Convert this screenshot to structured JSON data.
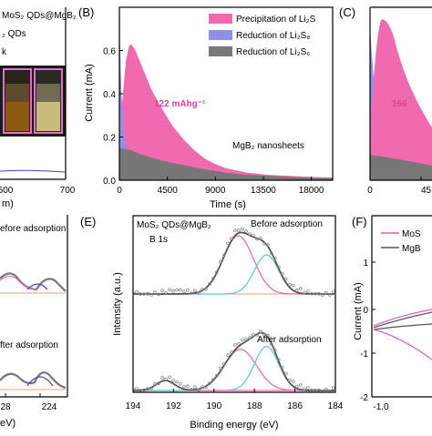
{
  "panels": {
    "a": {
      "legend": [
        "MoS₂ QDs@MgB₂",
        "₂ QDs",
        "k"
      ],
      "x_ticks": [
        "500",
        "700"
      ],
      "x_label": "m)"
    },
    "b": {
      "label": "(B)",
      "y_label": "Current (mA)",
      "x_label": "Time (s)",
      "x_ticks": [
        "0",
        "4500",
        "9000",
        "13500",
        "18000"
      ],
      "y_ticks": [
        "0.0",
        "0.2",
        "0.4",
        "0.6"
      ],
      "legend": [
        {
          "text": "Precipitation of Li₂S",
          "color": "#f06ab0"
        },
        {
          "text": "Reduction of Li₂S₈",
          "color": "#8f8fe8"
        },
        {
          "text": "Reduction of Li₂S₆",
          "color": "#777777"
        }
      ],
      "capacity_label": "122 mAhg⁻¹",
      "material_label": "MgB₂ nanosheets"
    },
    "c": {
      "label": "(C)",
      "capacity_label": "166",
      "x_ticks": [
        "0",
        "45"
      ]
    },
    "d": {
      "before_label": "efore adsorption",
      "after_label": "fter adsorption",
      "x_ticks": [
        "28",
        "224"
      ],
      "x_label": "eV)"
    },
    "e": {
      "label": "(E)",
      "title_line1": "MoS₂ QDs@MgB₂",
      "title_line2": "B 1s",
      "before_label": "Before adsorption",
      "after_label": "After adsorption",
      "y_label": "Intensity (a.u.)",
      "x_label": "Binding energy (eV)",
      "x_ticks": [
        "194",
        "192",
        "190",
        "188",
        "186",
        "184"
      ]
    },
    "f": {
      "label": "(F)",
      "y_label": "Current (mA)",
      "y_ticks": [
        "1",
        "0",
        "-1",
        "-2"
      ],
      "x_ticks": [
        "-1.0"
      ],
      "legend": [
        "MoS",
        "MgB"
      ]
    }
  },
  "chart_data": [
    {
      "type": "area",
      "panel": "B",
      "xlabel": "Time (s)",
      "ylabel": "Current (mA)",
      "xlim": [
        0,
        20000
      ],
      "ylim": [
        0,
        0.8
      ],
      "series": [
        {
          "name": "Precipitation of Li₂S",
          "color": "#f06ab0",
          "x": [
            0,
            300,
            600,
            900,
            1100,
            1500,
            2000,
            2500,
            3000,
            4000,
            5000,
            6000,
            7000,
            8000,
            9000,
            10000,
            12000,
            14000,
            16000,
            18000,
            20000
          ],
          "y": [
            0.2,
            0.38,
            0.55,
            0.62,
            0.63,
            0.6,
            0.54,
            0.48,
            0.42,
            0.33,
            0.25,
            0.19,
            0.14,
            0.1,
            0.075,
            0.055,
            0.035,
            0.025,
            0.02,
            0.015,
            0.012
          ]
        },
        {
          "name": "Reduction of Li₂S₈",
          "color": "#8f8fe8",
          "x": [
            0,
            100,
            200,
            400,
            600,
            800,
            1000,
            1200,
            1500
          ],
          "y": [
            0.8,
            0.55,
            0.4,
            0.24,
            0.16,
            0.12,
            0.11,
            0.1,
            0.1
          ]
        },
        {
          "name": "Reduction of Li₂S₆",
          "color": "#777777",
          "x": [
            0,
            1000,
            2000,
            4000,
            6000,
            8000,
            10000,
            12000,
            14000,
            16000,
            18000,
            20000
          ],
          "y": [
            0.15,
            0.14,
            0.12,
            0.09,
            0.07,
            0.05,
            0.035,
            0.025,
            0.02,
            0.015,
            0.012,
            0.01
          ]
        }
      ]
    },
    {
      "type": "line",
      "panel": "E",
      "xlabel": "Binding energy (eV)",
      "ylabel": "Intensity (a.u.)",
      "xlim": [
        194,
        184
      ],
      "series": [
        {
          "component": "before-fit-1",
          "color": "#f06ab0",
          "center": 188.8,
          "height": 0.82,
          "width": 0.75,
          "offset": "before"
        },
        {
          "component": "before-fit-2",
          "color": "#5ec8e6",
          "center": 187.4,
          "height": 0.55,
          "width": 0.6,
          "offset": "before"
        },
        {
          "component": "after-fit-1",
          "color": "#f06ab0",
          "center": 188.7,
          "height": 0.58,
          "width": 0.8,
          "offset": "after"
        },
        {
          "component": "after-fit-2",
          "color": "#5ec8e6",
          "center": 187.4,
          "height": 0.62,
          "width": 0.6,
          "offset": "after"
        },
        {
          "component": "after-small-peak",
          "color": "#f06ab0",
          "center": 192.4,
          "height": 0.14,
          "width": 0.45,
          "offset": "after"
        }
      ]
    }
  ]
}
